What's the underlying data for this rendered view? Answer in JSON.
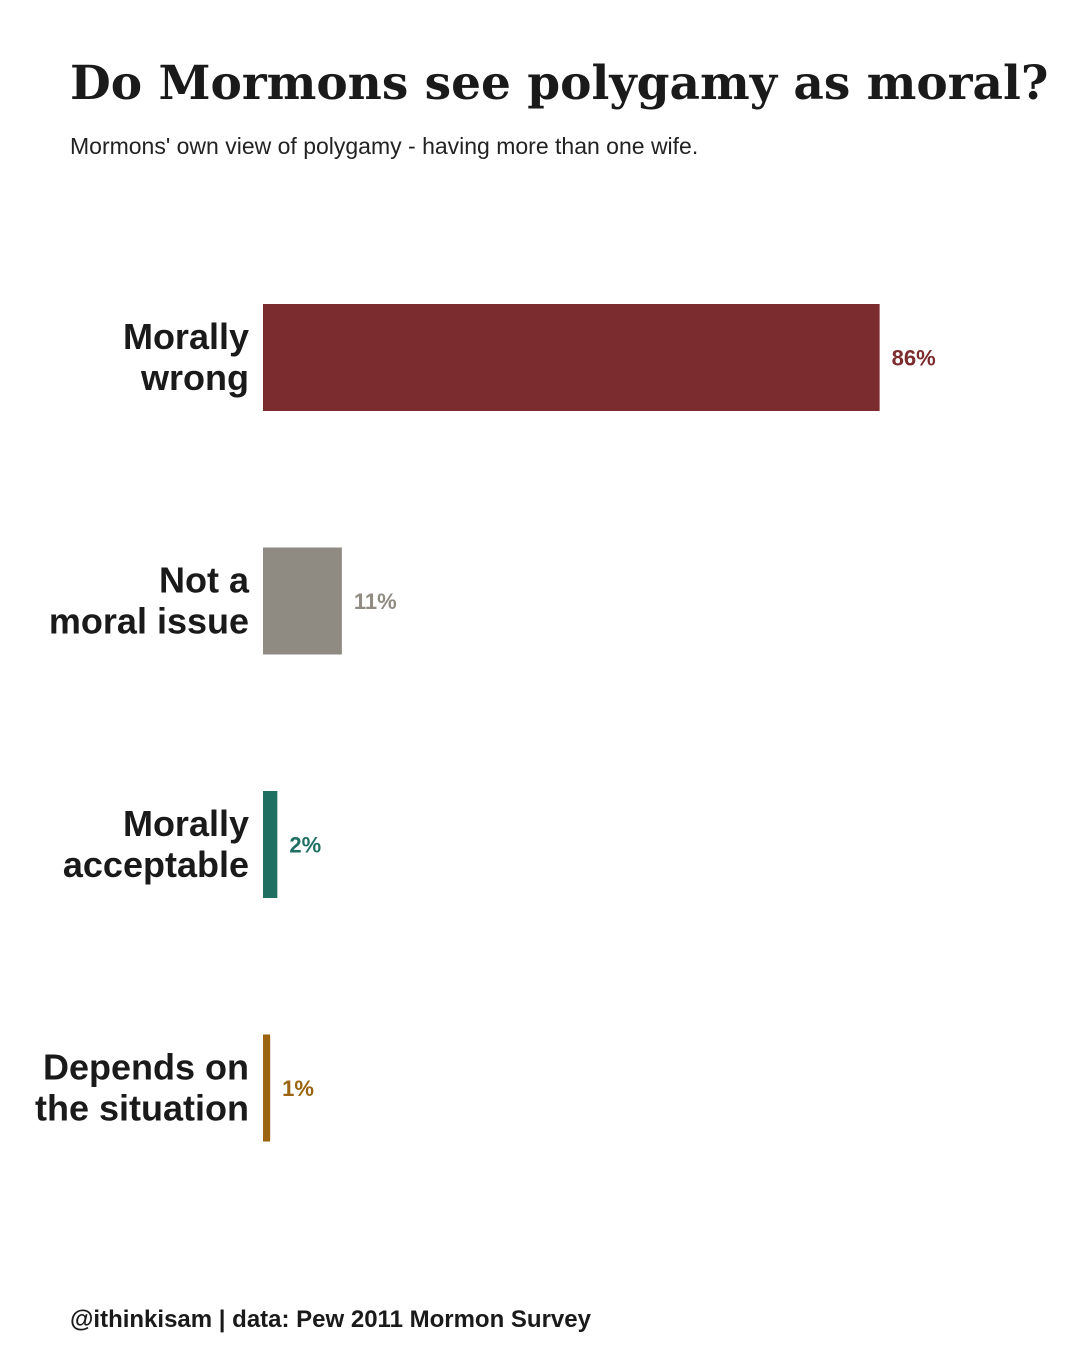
{
  "title": "Do Mormons see polygamy as moral?",
  "subtitle": "Mormons' own view of polygamy - having more than one wife.",
  "caption": "@ithinkisam | data: Pew 2011 Mormon Survey",
  "chart_data": {
    "type": "bar",
    "orientation": "horizontal",
    "title": "Do Mormons see polygamy as moral?",
    "subtitle": "Mormons' own view of polygamy - having more than one wife.",
    "xlabel": "",
    "ylabel": "",
    "xlim": [
      0,
      100
    ],
    "grid": false,
    "legend": "none",
    "unit": "%",
    "categories": [
      [
        "Morally",
        "wrong"
      ],
      [
        "Not a",
        "moral issue"
      ],
      [
        "Morally",
        "acceptable"
      ],
      [
        "Depends on",
        "the situation"
      ]
    ],
    "values": [
      86,
      11,
      2,
      1
    ],
    "value_labels": [
      "86%",
      "11%",
      "2%",
      "1%"
    ],
    "colors": [
      "#7b2c2f",
      "#8f8b83",
      "#1f6f63",
      "#9a6410"
    ]
  }
}
